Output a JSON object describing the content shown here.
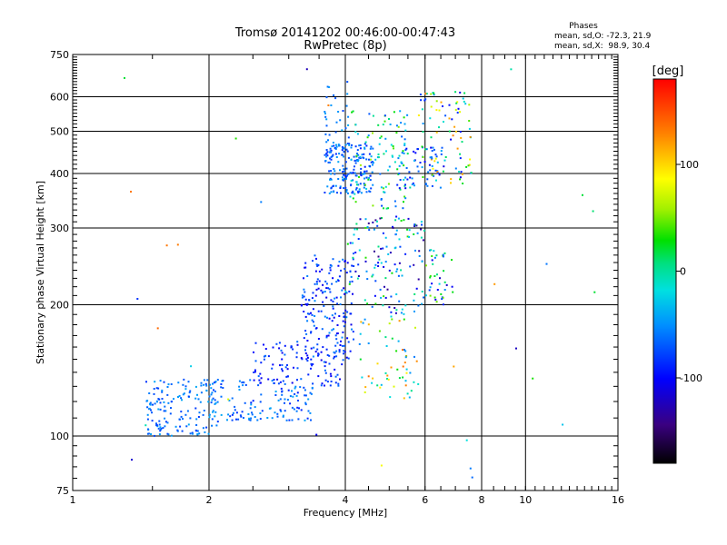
{
  "chart_data": {
    "type": "scatter",
    "title": "Tromsø 20141202 00:46:00-00:47:43",
    "subtitle": "RwPretec (8p)",
    "xlabel": "Frequency [MHz]",
    "ylabel": "Stationary phase Virtual Height [km]",
    "x_scale": "log",
    "y_scale": "log",
    "xlim": [
      1,
      16
    ],
    "ylim": [
      75,
      750
    ],
    "x_ticks": [
      1,
      2,
      4,
      6,
      8,
      10,
      16
    ],
    "y_ticks": [
      75,
      100,
      200,
      300,
      400,
      500,
      600,
      750
    ],
    "grid": true,
    "stats": {
      "header": "Phases",
      "line_o": "mean, sd,O: -72.3, 21.9",
      "line_x": "mean, sd,X:  98.9, 30.4"
    },
    "colorbar": {
      "label": "[deg]",
      "range": [
        -180,
        180
      ],
      "ticks": [
        100,
        0,
        -100
      ],
      "tick_labels": [
        "100",
        "0",
        "-100"
      ]
    },
    "clusters": [
      {
        "x": [
          1.45,
          2.1
        ],
        "y": [
          100,
          135
        ],
        "phase": [
          -80,
          -40
        ],
        "n": 160
      },
      {
        "x": [
          2.0,
          3.4
        ],
        "y": [
          108,
          135
        ],
        "phase": [
          -90,
          -40
        ],
        "n": 130
      },
      {
        "x": [
          2.5,
          4.0
        ],
        "y": [
          130,
          165
        ],
        "phase": [
          -110,
          -60
        ],
        "n": 110
      },
      {
        "x": [
          3.2,
          4.2
        ],
        "y": [
          150,
          260
        ],
        "phase": [
          -110,
          -50
        ],
        "n": 180
      },
      {
        "x": [
          3.6,
          4.6
        ],
        "y": [
          360,
          470
        ],
        "phase": [
          -90,
          -40
        ],
        "n": 170
      },
      {
        "x": [
          4.1,
          5.6
        ],
        "y": [
          330,
          560
        ],
        "phase": [
          -80,
          60
        ],
        "n": 110
      },
      {
        "x": [
          5.2,
          6.6
        ],
        "y": [
          370,
          460
        ],
        "phase": [
          -110,
          -40
        ],
        "n": 60
      },
      {
        "x": [
          5.8,
          7.6
        ],
        "y": [
          380,
          620
        ],
        "phase": [
          -110,
          130
        ],
        "n": 90
      },
      {
        "x": [
          4.0,
          6.0
        ],
        "y": [
          190,
          320
        ],
        "phase": [
          -140,
          40
        ],
        "n": 140
      },
      {
        "x": [
          4.3,
          5.8
        ],
        "y": [
          120,
          190
        ],
        "phase": [
          -60,
          140
        ],
        "n": 60
      },
      {
        "x": [
          6.0,
          7.0
        ],
        "y": [
          200,
          270
        ],
        "phase": [
          -130,
          60
        ],
        "n": 40
      },
      {
        "x": [
          3.6,
          4.1
        ],
        "y": [
          400,
          650
        ],
        "phase": [
          -80,
          -40
        ],
        "n": 40
      },
      {
        "x": [
          1.0,
          16.0
        ],
        "y": [
          80,
          700
        ],
        "phase": [
          -140,
          140
        ],
        "n": 35
      }
    ]
  }
}
